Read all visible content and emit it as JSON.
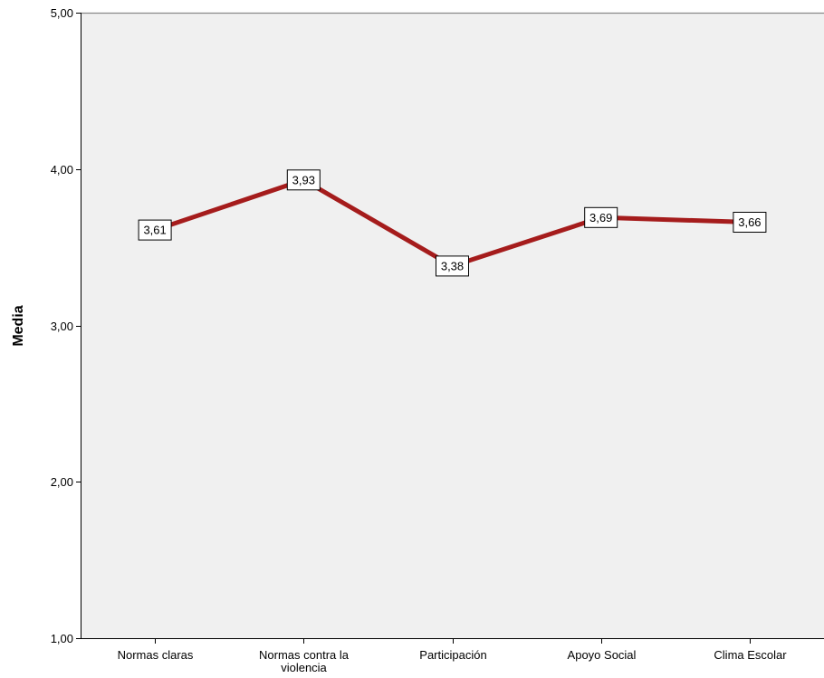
{
  "chart_data": {
    "type": "line",
    "categories": [
      "Normas claras",
      "Normas contra la violencia",
      "Participación",
      "Apoyo Social",
      "Clima Escolar"
    ],
    "category_lines": [
      [
        "Normas claras"
      ],
      [
        "Normas contra la",
        "violencia"
      ],
      [
        "Participación"
      ],
      [
        "Apoyo Social"
      ],
      [
        "Clima Escolar"
      ]
    ],
    "values": [
      3.61,
      3.93,
      3.38,
      3.69,
      3.66
    ],
    "data_labels": [
      "3,61",
      "3,93",
      "3,38",
      "3,69",
      "3,66"
    ],
    "ylabel": "Media",
    "ylim": [
      1,
      5
    ],
    "yticks": [
      1,
      2,
      3,
      4,
      5
    ],
    "ytick_labels": [
      "1,00",
      "2,00",
      "3,00",
      "4,00",
      "5,00"
    ],
    "grid": false
  },
  "colors": {
    "line": "#a51c1c",
    "plot_background": "#f0f0f0",
    "axis": "#000000",
    "label_box_border": "#000000",
    "label_box_fill": "#ffffff"
  }
}
